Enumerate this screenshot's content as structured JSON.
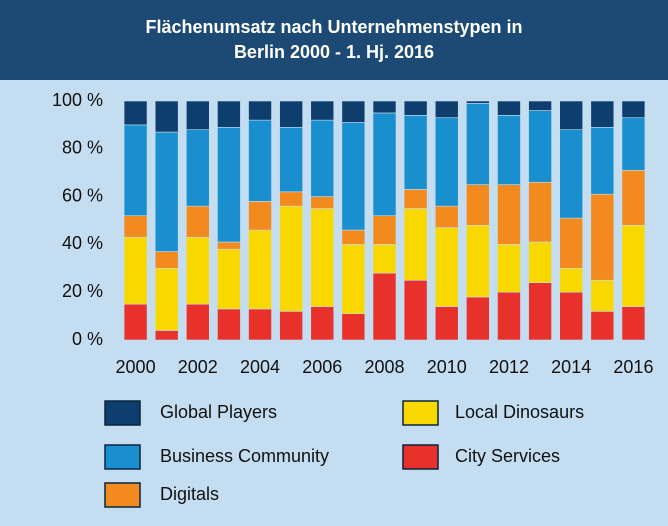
{
  "chart_data": {
    "type": "stacked-bar",
    "title": "Flächenumsatz nach Unternehmenstypen in Berlin 2000 - 1. Hj. 2016",
    "categories": [
      "2000",
      null,
      "2002",
      null,
      "2004",
      null,
      "2006",
      null,
      "2008",
      null,
      "2010",
      null,
      "2012",
      null,
      "2014",
      null,
      "2016"
    ],
    "series": [
      {
        "name": "City Services",
        "color": "#e8312a",
        "values": [
          15,
          4,
          15,
          13,
          13,
          12,
          14,
          11,
          28,
          25,
          14,
          18,
          20,
          24,
          20,
          12,
          14
        ]
      },
      {
        "name": "Local Dinosaurs",
        "color": "#f9d800",
        "values": [
          28,
          26,
          28,
          25,
          33,
          44,
          41,
          29,
          12,
          30,
          33,
          30,
          20,
          17,
          10,
          13,
          34
        ]
      },
      {
        "name": "Digitals",
        "color": "#f28a1e",
        "values": [
          9,
          7,
          13,
          3,
          12,
          6,
          5,
          6,
          12,
          8,
          9,
          17,
          25,
          25,
          21,
          36,
          23
        ]
      },
      {
        "name": "Business Community",
        "color": "#1a8fd0",
        "values": [
          38,
          50,
          32,
          48,
          34,
          27,
          32,
          45,
          43,
          31,
          37,
          34,
          29,
          30,
          37,
          28,
          22
        ]
      },
      {
        "name": "Global Players",
        "color": "#0d3e6e",
        "values": [
          10,
          13,
          12,
          11,
          8,
          11,
          8,
          9,
          5,
          6,
          7,
          1,
          6,
          4,
          12,
          11,
          7
        ]
      }
    ],
    "ylim": [
      0,
      100
    ],
    "yticks": [
      {
        "value": 0,
        "label": "0 %"
      },
      {
        "value": 20,
        "label": "20 %"
      },
      {
        "value": 40,
        "label": "40 %"
      },
      {
        "value": 60,
        "label": "60 %"
      },
      {
        "value": 80,
        "label": "80 %"
      },
      {
        "value": 100,
        "label": "100 %"
      }
    ]
  }
}
